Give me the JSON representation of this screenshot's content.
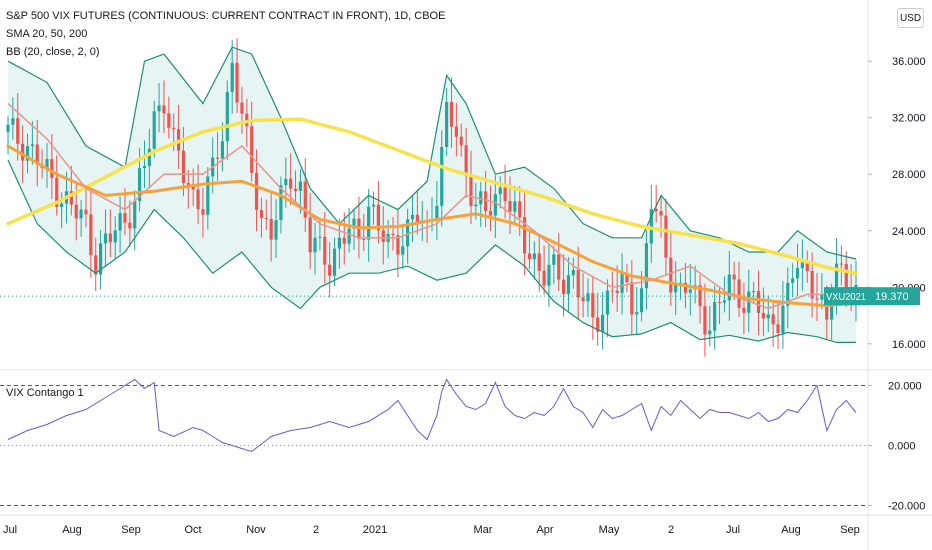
{
  "header": {
    "title": "S&P 500 VIX FUTURES (CONTINUOUS: CURRENT CONTRACT IN FRONT), 1D, CBOE",
    "sma": "SMA 20, 50, 200",
    "bb": "BB (20, close, 2, 0)",
    "currency": "USD"
  },
  "colors": {
    "up": "#26a69a",
    "down": "#ef5350",
    "sma20": "#e8998f",
    "sma50": "#f5a23b",
    "sma200": "#f7e24b",
    "bb_band": "#1e8f73",
    "bb_fill": "#e6f4f3",
    "contango": "#6a5acd",
    "upper_level": "#2e7d32",
    "lower_level": "#9c2b7a",
    "price_line": "#26a69a"
  },
  "price_tag": {
    "symbol": "VXU2021",
    "value": "19.370"
  },
  "chart_data": [
    {
      "type": "candlestick",
      "name": "main",
      "ylim": [
        14.5,
        37.5
      ],
      "yticks": [
        "16.000",
        "20.000",
        "24.000",
        "28.000",
        "32.000",
        "36.000"
      ],
      "xlabels": [
        "Jul",
        "Aug",
        "Sep",
        "Oct",
        "Nov",
        "2",
        "2021",
        "Mar",
        "Apr",
        "May",
        "2",
        "Jul",
        "Aug",
        "Sep"
      ],
      "last_price": 19.37,
      "close_path": [
        [
          0,
          31
        ],
        [
          4,
          30
        ],
        [
          8,
          28
        ],
        [
          12,
          26
        ],
        [
          16,
          24.5
        ],
        [
          18,
          22
        ],
        [
          22,
          24
        ],
        [
          26,
          26
        ],
        [
          28,
          28.5
        ],
        [
          30,
          32
        ],
        [
          32,
          33.5
        ],
        [
          34,
          30
        ],
        [
          36,
          28
        ],
        [
          38,
          26.5
        ],
        [
          40,
          26
        ],
        [
          42,
          28
        ],
        [
          44,
          31
        ],
        [
          46,
          36
        ],
        [
          48,
          32
        ],
        [
          50,
          28
        ],
        [
          52,
          25
        ],
        [
          54,
          24
        ],
        [
          56,
          26
        ],
        [
          58,
          28
        ],
        [
          60,
          27
        ],
        [
          62,
          23
        ],
        [
          64,
          22.5
        ],
        [
          66,
          22
        ],
        [
          68,
          23
        ],
        [
          70,
          24
        ],
        [
          72,
          23.5
        ],
        [
          74,
          26
        ],
        [
          76,
          24
        ],
        [
          78,
          23
        ],
        [
          80,
          23.5
        ],
        [
          82,
          24
        ],
        [
          84,
          25
        ],
        [
          86,
          24
        ],
        [
          88,
          27
        ],
        [
          90,
          32
        ],
        [
          92,
          31
        ],
        [
          94,
          28
        ],
        [
          96,
          26
        ],
        [
          98,
          25
        ],
        [
          100,
          26.5
        ],
        [
          102,
          27
        ],
        [
          104,
          25
        ],
        [
          106,
          23
        ],
        [
          108,
          22
        ],
        [
          110,
          21
        ],
        [
          112,
          21
        ],
        [
          114,
          20.5
        ],
        [
          116,
          21
        ],
        [
          118,
          19
        ],
        [
          120,
          17.5
        ],
        [
          122,
          18.5
        ],
        [
          124,
          20
        ],
        [
          126,
          20
        ],
        [
          128,
          19
        ],
        [
          130,
          19.5
        ],
        [
          132,
          26
        ],
        [
          134,
          24
        ],
        [
          136,
          21
        ],
        [
          138,
          19.5
        ],
        [
          140,
          20
        ],
        [
          142,
          18.5
        ],
        [
          144,
          17.5
        ],
        [
          146,
          18.5
        ],
        [
          148,
          20.5
        ],
        [
          150,
          19.5
        ],
        [
          152,
          19
        ],
        [
          154,
          18.5
        ],
        [
          156,
          17.5
        ],
        [
          158,
          18
        ],
        [
          160,
          19
        ],
        [
          162,
          22
        ],
        [
          164,
          21
        ],
        [
          166,
          19.5
        ],
        [
          168,
          17
        ],
        [
          170,
          22
        ],
        [
          172,
          20.5
        ],
        [
          174,
          19.3
        ]
      ],
      "sma20": [
        [
          0,
          33
        ],
        [
          8,
          30.5
        ],
        [
          16,
          27
        ],
        [
          24,
          25.5
        ],
        [
          32,
          28
        ],
        [
          40,
          28
        ],
        [
          48,
          30
        ],
        [
          56,
          27
        ],
        [
          64,
          24.5
        ],
        [
          72,
          23.5
        ],
        [
          80,
          23.5
        ],
        [
          88,
          24.5
        ],
        [
          94,
          26.5
        ],
        [
          100,
          26
        ],
        [
          108,
          24
        ],
        [
          116,
          21.5
        ],
        [
          124,
          20
        ],
        [
          132,
          20.5
        ],
        [
          140,
          21.5
        ],
        [
          148,
          19.5
        ],
        [
          156,
          18.5
        ],
        [
          164,
          19.5
        ],
        [
          174,
          19.5
        ]
      ],
      "sma50": [
        [
          0,
          30
        ],
        [
          10,
          28
        ],
        [
          20,
          26.5
        ],
        [
          30,
          26.8
        ],
        [
          40,
          27.3
        ],
        [
          48,
          27.5
        ],
        [
          56,
          26.5
        ],
        [
          64,
          24.8
        ],
        [
          72,
          24.2
        ],
        [
          80,
          24.3
        ],
        [
          88,
          24.8
        ],
        [
          96,
          25.2
        ],
        [
          104,
          24.5
        ],
        [
          112,
          23.2
        ],
        [
          120,
          21.8
        ],
        [
          128,
          20.8
        ],
        [
          136,
          20.3
        ],
        [
          144,
          19.8
        ],
        [
          152,
          19.2
        ],
        [
          160,
          18.9
        ],
        [
          168,
          18.7
        ],
        [
          174,
          18.9
        ]
      ],
      "sma200": [
        [
          0,
          24.5
        ],
        [
          10,
          26
        ],
        [
          20,
          27.8
        ],
        [
          30,
          29.6
        ],
        [
          40,
          31
        ],
        [
          50,
          31.8
        ],
        [
          60,
          31.9
        ],
        [
          70,
          31
        ],
        [
          80,
          29.7
        ],
        [
          90,
          28.4
        ],
        [
          100,
          27.4
        ],
        [
          110,
          26.4
        ],
        [
          120,
          25.2
        ],
        [
          130,
          24.3
        ],
        [
          140,
          23.7
        ],
        [
          150,
          23.1
        ],
        [
          160,
          22.2
        ],
        [
          168,
          21.4
        ],
        [
          174,
          21
        ]
      ],
      "bb_upper": [
        [
          0,
          36
        ],
        [
          8,
          34.5
        ],
        [
          16,
          30
        ],
        [
          24,
          28.5
        ],
        [
          28,
          36
        ],
        [
          32,
          36.5
        ],
        [
          40,
          33
        ],
        [
          46,
          37
        ],
        [
          50,
          36.5
        ],
        [
          56,
          32
        ],
        [
          62,
          27
        ],
        [
          68,
          24.5
        ],
        [
          74,
          26.5
        ],
        [
          80,
          25.5
        ],
        [
          86,
          27.5
        ],
        [
          90,
          35
        ],
        [
          94,
          33
        ],
        [
          100,
          28
        ],
        [
          106,
          28.5
        ],
        [
          112,
          27
        ],
        [
          118,
          24.5
        ],
        [
          124,
          23.5
        ],
        [
          130,
          23.5
        ],
        [
          134,
          26.5
        ],
        [
          140,
          24
        ],
        [
          146,
          23.5
        ],
        [
          152,
          22.5
        ],
        [
          158,
          22.5
        ],
        [
          162,
          24
        ],
        [
          168,
          22.5
        ],
        [
          174,
          22
        ]
      ],
      "bb_lower": [
        [
          0,
          29
        ],
        [
          6,
          24.5
        ],
        [
          12,
          22.5
        ],
        [
          18,
          21
        ],
        [
          24,
          22.5
        ],
        [
          30,
          25.5
        ],
        [
          36,
          23.5
        ],
        [
          42,
          21
        ],
        [
          48,
          22.5
        ],
        [
          54,
          20
        ],
        [
          60,
          18.5
        ],
        [
          64,
          20
        ],
        [
          70,
          21
        ],
        [
          76,
          21
        ],
        [
          82,
          21.5
        ],
        [
          88,
          20.5
        ],
        [
          94,
          21
        ],
        [
          100,
          23
        ],
        [
          106,
          21.5
        ],
        [
          112,
          19
        ],
        [
          118,
          17.5
        ],
        [
          124,
          16.5
        ],
        [
          130,
          16.7
        ],
        [
          136,
          17.5
        ],
        [
          142,
          16.3
        ],
        [
          148,
          16.6
        ],
        [
          154,
          16.2
        ],
        [
          160,
          16.8
        ],
        [
          166,
          16.5
        ],
        [
          170,
          16.1
        ],
        [
          174,
          16.1
        ]
      ]
    },
    {
      "type": "line",
      "name": "VIX Contango 1",
      "ylim": [
        -21.5,
        22.5
      ],
      "yticks": [
        "-20.000",
        "0.000",
        "20.000"
      ],
      "levels": [
        20,
        0,
        -20
      ],
      "series": [
        [
          0,
          2
        ],
        [
          4,
          5
        ],
        [
          8,
          7
        ],
        [
          12,
          10
        ],
        [
          16,
          12
        ],
        [
          20,
          16
        ],
        [
          24,
          20
        ],
        [
          26,
          22
        ],
        [
          28,
          19
        ],
        [
          30,
          21
        ],
        [
          31,
          5
        ],
        [
          34,
          3
        ],
        [
          38,
          6
        ],
        [
          40,
          5
        ],
        [
          42,
          3
        ],
        [
          44,
          1
        ],
        [
          46,
          0
        ],
        [
          48,
          -1
        ],
        [
          50,
          -2
        ],
        [
          54,
          3
        ],
        [
          58,
          5
        ],
        [
          62,
          6
        ],
        [
          66,
          8
        ],
        [
          70,
          6
        ],
        [
          74,
          8
        ],
        [
          78,
          12
        ],
        [
          80,
          15
        ],
        [
          82,
          10
        ],
        [
          84,
          5
        ],
        [
          86,
          2
        ],
        [
          88,
          10
        ],
        [
          89,
          18
        ],
        [
          90,
          22
        ],
        [
          92,
          17
        ],
        [
          94,
          13
        ],
        [
          96,
          12
        ],
        [
          98,
          14
        ],
        [
          100,
          21
        ],
        [
          102,
          13
        ],
        [
          104,
          10
        ],
        [
          106,
          9
        ],
        [
          108,
          11
        ],
        [
          110,
          10
        ],
        [
          112,
          13
        ],
        [
          114,
          19
        ],
        [
          116,
          13
        ],
        [
          118,
          11
        ],
        [
          120,
          6
        ],
        [
          122,
          12
        ],
        [
          124,
          9
        ],
        [
          126,
          10
        ],
        [
          128,
          12
        ],
        [
          130,
          14
        ],
        [
          132,
          5
        ],
        [
          134,
          13
        ],
        [
          136,
          10
        ],
        [
          138,
          15
        ],
        [
          140,
          12
        ],
        [
          142,
          9
        ],
        [
          144,
          12
        ],
        [
          146,
          11
        ],
        [
          148,
          11
        ],
        [
          150,
          10
        ],
        [
          152,
          9
        ],
        [
          154,
          11
        ],
        [
          156,
          8
        ],
        [
          158,
          9
        ],
        [
          160,
          12
        ],
        [
          162,
          11
        ],
        [
          164,
          15
        ],
        [
          166,
          20
        ],
        [
          168,
          5
        ],
        [
          170,
          12
        ],
        [
          172,
          15
        ],
        [
          174,
          11
        ]
      ]
    }
  ]
}
